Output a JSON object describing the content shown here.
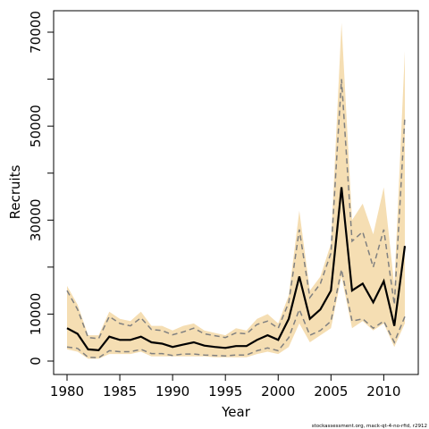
{
  "chart_data": {
    "type": "line",
    "title": "",
    "xlabel": "Year",
    "ylabel": "Recruits",
    "xlim": [
      1980,
      2012
    ],
    "ylim": [
      0,
      70000
    ],
    "x_ticks": [
      1980,
      1985,
      1990,
      1995,
      2000,
      2005,
      2010
    ],
    "y_ticks_labeled": [
      0,
      10000,
      30000,
      50000,
      70000
    ],
    "y_ticks_minor": [
      20000,
      40000,
      60000
    ],
    "grid": false,
    "legend": "none",
    "colors": {
      "band": "#f5deb3",
      "median": "#000000",
      "dashed": "#808080",
      "axes": "#000000"
    },
    "x": [
      1980,
      1981,
      1982,
      1983,
      1984,
      1985,
      1986,
      1987,
      1988,
      1989,
      1990,
      1991,
      1992,
      1993,
      1994,
      1995,
      1996,
      1997,
      1998,
      1999,
      2000,
      2001,
      2002,
      2003,
      2004,
      2005,
      2006,
      2007,
      2008,
      2009,
      2010,
      2011,
      2012
    ],
    "series": [
      {
        "role": "upper_band",
        "values": [
          16000,
          12000,
          5500,
          5500,
          10500,
          9000,
          8500,
          10500,
          7500,
          7500,
          6500,
          7500,
          8000,
          6500,
          6000,
          5500,
          7000,
          6500,
          9000,
          10000,
          8000,
          14000,
          32000,
          15000,
          18000,
          25000,
          72000,
          30000,
          33500,
          27000,
          37000,
          16000,
          66000
        ]
      },
      {
        "role": "lower_band",
        "values": [
          2500,
          2000,
          500,
          500,
          1500,
          1500,
          1500,
          2000,
          1000,
          1000,
          1000,
          1000,
          1000,
          1000,
          800,
          800,
          800,
          800,
          1500,
          2000,
          1500,
          3000,
          8000,
          4000,
          5500,
          7000,
          18000,
          7000,
          8500,
          6500,
          8000,
          3000,
          8000
        ]
      },
      {
        "role": "upper_dashed",
        "values": [
          15000,
          11000,
          5000,
          4800,
          9500,
          8000,
          7500,
          9200,
          6700,
          6500,
          5600,
          6200,
          7000,
          5800,
          5400,
          5000,
          6000,
          5800,
          7800,
          8500,
          7000,
          12500,
          28000,
          13500,
          16500,
          23000,
          60000,
          25500,
          27500,
          20000,
          28000,
          12000,
          52000
        ]
      },
      {
        "role": "median",
        "values": [
          7000,
          5800,
          2500,
          2300,
          5200,
          4500,
          4500,
          5200,
          4000,
          3700,
          3000,
          3500,
          4000,
          3300,
          3000,
          2800,
          3200,
          3200,
          4500,
          5500,
          4500,
          9000,
          18000,
          9000,
          11000,
          15000,
          37000,
          15000,
          16500,
          12500,
          17000,
          7500,
          24500
        ]
      },
      {
        "role": "lower_dashed",
        "values": [
          3000,
          2700,
          800,
          700,
          2200,
          2000,
          2000,
          2500,
          1600,
          1600,
          1200,
          1500,
          1500,
          1300,
          1200,
          1100,
          1300,
          1300,
          2200,
          2800,
          2200,
          5000,
          11000,
          5500,
          6500,
          8500,
          19500,
          8500,
          9000,
          7000,
          8500,
          4000,
          9500
        ]
      }
    ],
    "annotations": [
      "stockassessment.org, mack-qt-4-no-rfid, r2912"
    ]
  }
}
